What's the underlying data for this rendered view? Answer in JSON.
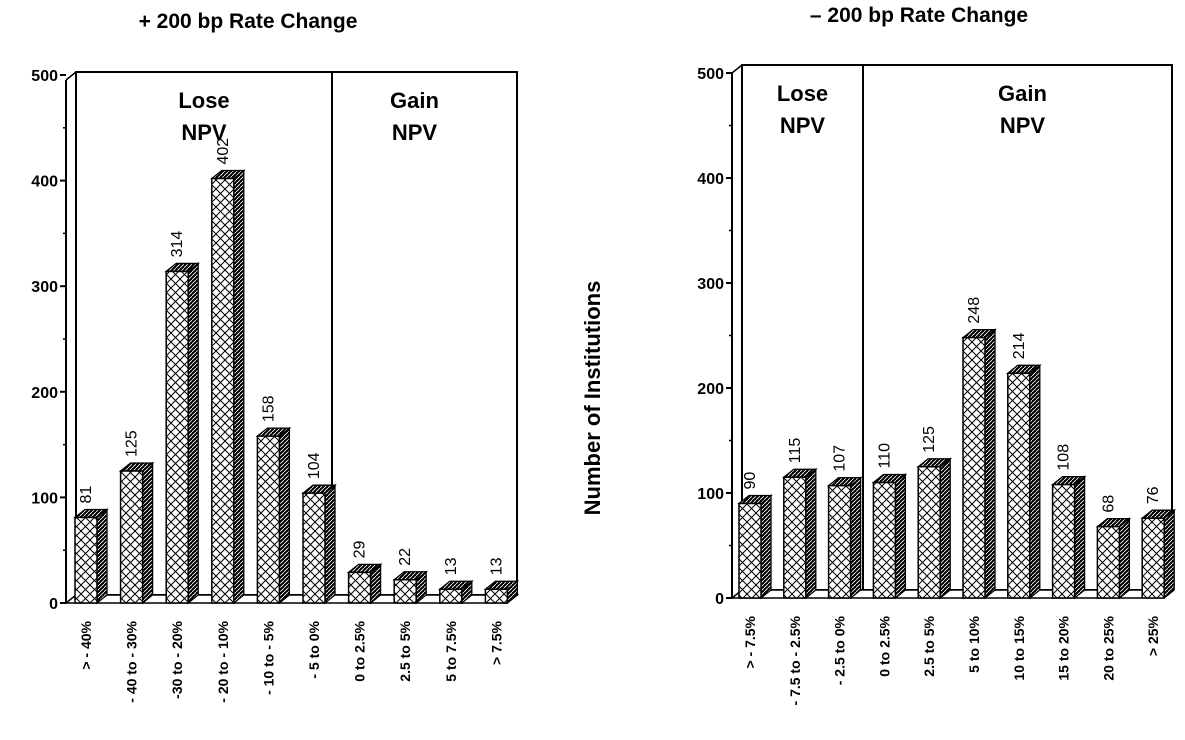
{
  "chart_data": [
    {
      "type": "bar",
      "title": "+ 200 bp Rate Change",
      "ylim": [
        0,
        500
      ],
      "yticks": [
        0,
        100,
        200,
        300,
        400,
        500
      ],
      "categories": [
        "> - 40%",
        "- 40 to - 30%",
        "-30 to - 20%",
        "- 20 to - 10%",
        "- 10 to - 5%",
        "- 5 to 0%",
        "0 to 2.5%",
        "2.5 to 5%",
        "5 to 7.5%",
        "> 7.5%"
      ],
      "values": [
        81,
        125,
        314,
        402,
        158,
        104,
        29,
        22,
        13,
        13
      ],
      "regions": [
        {
          "label_line1": "Lose",
          "label_line2": "NPV",
          "categories_count": 6
        },
        {
          "label_line1": "Gain",
          "label_line2": "NPV",
          "categories_count": 4
        }
      ]
    },
    {
      "type": "bar",
      "title": "– 200 bp Rate Change",
      "ylabel": "Number of Institutions",
      "ylim": [
        0,
        500
      ],
      "yticks": [
        0,
        100,
        200,
        300,
        400,
        500
      ],
      "categories": [
        "> - 7.5%",
        "- 7.5 to - 2.5%",
        "- 2.5 to 0%",
        "0 to 2.5%",
        "2.5 to 5%",
        "5 to 10%",
        "10 to 15%",
        "15 to 20%",
        "20 to 25%",
        "> 25%"
      ],
      "values": [
        90,
        115,
        107,
        110,
        125,
        248,
        214,
        108,
        68,
        76
      ],
      "regions": [
        {
          "label_line1": "Lose",
          "label_line2": "NPV",
          "categories_count": 3
        },
        {
          "label_line1": "Gain",
          "label_line2": "NPV",
          "categories_count": 7
        }
      ]
    }
  ]
}
